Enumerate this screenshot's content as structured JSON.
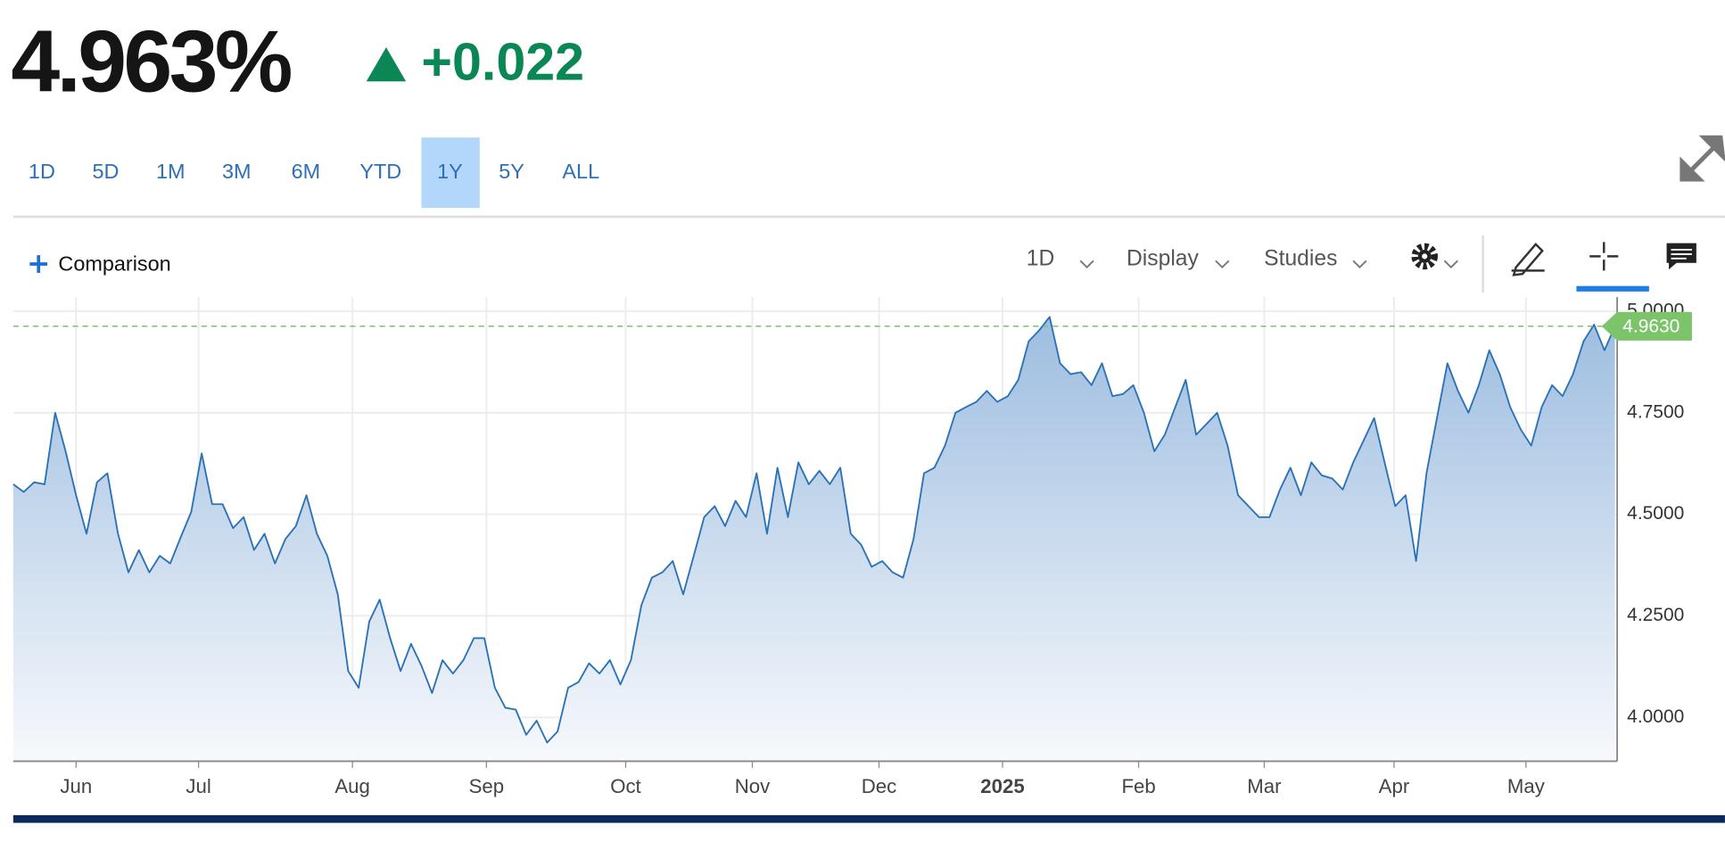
{
  "header": {
    "price": "4.963%",
    "change": "+0.022"
  },
  "ranges": [
    "1D",
    "5D",
    "1M",
    "3M",
    "6M",
    "YTD",
    "1Y",
    "5Y",
    "ALL"
  ],
  "active_range": "1Y",
  "toolbar": {
    "comparison": "Comparison",
    "interval": "1D",
    "display": "Display",
    "studies": "Studies"
  },
  "chart_data": {
    "type": "area",
    "color": "#2a72b5",
    "values": [
      4.574,
      4.555,
      4.579,
      4.574,
      4.75,
      4.655,
      4.547,
      4.452,
      4.579,
      4.601,
      4.452,
      4.357,
      4.412,
      4.357,
      4.398,
      4.379,
      4.444,
      4.506,
      4.65,
      4.525,
      4.525,
      4.466,
      4.493,
      4.412,
      4.452,
      4.379,
      4.439,
      4.471,
      4.547,
      4.452,
      4.398,
      4.303,
      4.114,
      4.073,
      4.236,
      4.29,
      4.195,
      4.114,
      4.181,
      4.127,
      4.06,
      4.141,
      4.108,
      4.141,
      4.195,
      4.195,
      4.073,
      4.024,
      4.019,
      3.957,
      3.992,
      3.938,
      3.965,
      4.073,
      4.087,
      4.133,
      4.108,
      4.141,
      4.081,
      4.141,
      4.276,
      4.344,
      4.357,
      4.385,
      4.303,
      4.398,
      4.493,
      4.52,
      4.471,
      4.533,
      4.493,
      4.601,
      4.452,
      4.615,
      4.493,
      4.628,
      4.574,
      4.607,
      4.574,
      4.615,
      4.452,
      4.425,
      4.371,
      4.385,
      4.357,
      4.344,
      4.439,
      4.601,
      4.615,
      4.669,
      4.75,
      4.764,
      4.777,
      4.804,
      4.777,
      4.791,
      4.831,
      4.926,
      4.953,
      4.986,
      4.872,
      4.845,
      4.85,
      4.818,
      4.872,
      4.791,
      4.796,
      4.818,
      4.75,
      4.655,
      4.696,
      4.764,
      4.831,
      4.696,
      4.723,
      4.75,
      4.669,
      4.547,
      4.52,
      4.493,
      4.493,
      4.561,
      4.615,
      4.547,
      4.628,
      4.596,
      4.588,
      4.561,
      4.628,
      4.682,
      4.737,
      4.628,
      4.52,
      4.547,
      4.385,
      4.601,
      4.737,
      4.872,
      4.804,
      4.75,
      4.818,
      4.904,
      4.845,
      4.764,
      4.709,
      4.669,
      4.764,
      4.818,
      4.791,
      4.845,
      4.926,
      4.967,
      4.904,
      4.963
    ],
    "xlim": [
      0,
      153
    ],
    "xticks": [
      {
        "value": 6,
        "label": "Jun"
      },
      {
        "value": 17.7,
        "label": "Jul"
      },
      {
        "value": 32.4,
        "label": "Aug"
      },
      {
        "value": 45.2,
        "label": "Sep"
      },
      {
        "value": 58.5,
        "label": "Oct"
      },
      {
        "value": 70.6,
        "label": "Nov"
      },
      {
        "value": 82.7,
        "label": "Dec"
      },
      {
        "value": 94.5,
        "label": "2025"
      },
      {
        "value": 107.5,
        "label": "Feb"
      },
      {
        "value": 119.5,
        "label": "Mar"
      },
      {
        "value": 131.9,
        "label": "Apr"
      },
      {
        "value": 144.5,
        "label": "May"
      }
    ],
    "ylim": [
      3.892,
      5.035
    ],
    "yticks": [
      {
        "value": 4,
        "label": "4.0000"
      },
      {
        "value": 4.25,
        "label": "4.2500"
      },
      {
        "value": 4.5,
        "label": "4.5000"
      },
      {
        "value": 4.75,
        "label": "4.7500"
      },
      {
        "value": 5,
        "label": "5.0000"
      }
    ],
    "grid": true,
    "price_line": {
      "value": 4.963,
      "label": "4.9630",
      "color": "#7cc46a"
    }
  }
}
